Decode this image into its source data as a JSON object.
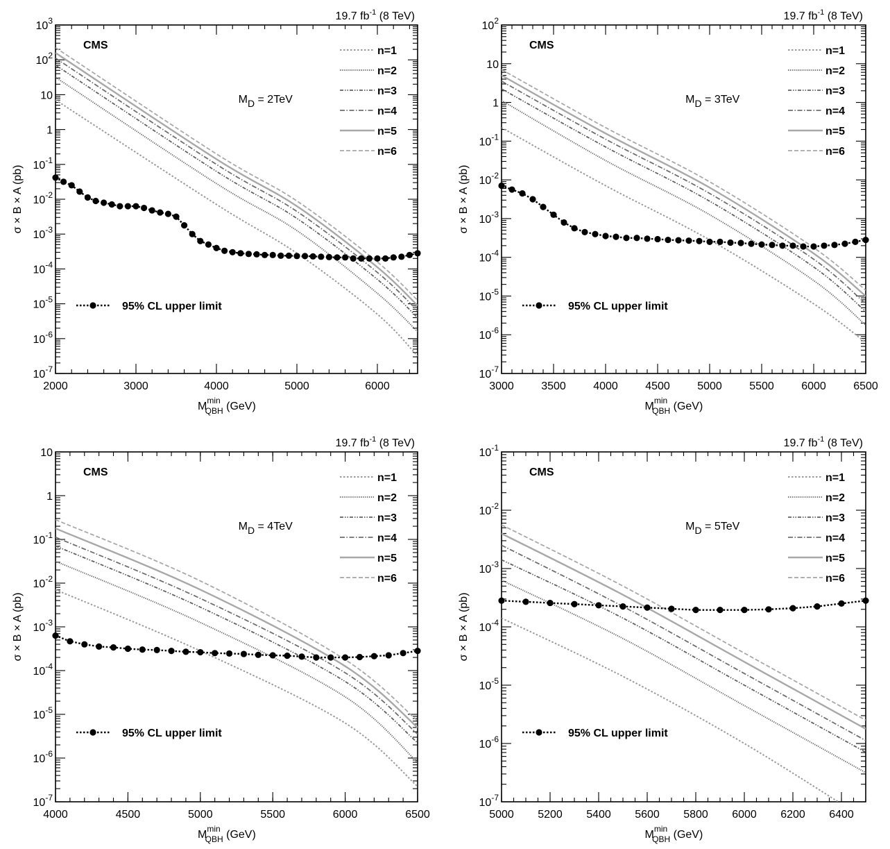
{
  "chart_data": [
    {
      "type": "line",
      "lumi_label": "19.7 fb",
      "lumi_sup": "-1",
      "energy_label": " (8 TeV)",
      "experiment": "CMS",
      "md_label_pre": "M",
      "md_label_sub": "D",
      "md_label_post": " = 2TeV",
      "xlabel_main": "M",
      "xlabel_sub": "QBH",
      "xlabel_sup": "min",
      "xlabel_unit": " (GeV)",
      "ylabel": "σ × B × A (pb)",
      "xlim": [
        2000,
        6500
      ],
      "ylim_exp": [
        -7,
        3
      ],
      "y_log": true,
      "x_ticks": [
        "2000",
        "3000",
        "4000",
        "5000",
        "6000"
      ],
      "x_tick_values": [
        2000,
        3000,
        4000,
        5000,
        6000
      ],
      "x_minor_step": 200,
      "y_tick_labels": [
        "10-7",
        "10-6",
        "10-5",
        "10-4",
        "10-3",
        "10-2",
        "10-1",
        "1",
        "10",
        "102",
        "103"
      ],
      "legend": [
        "n=1",
        "n=2",
        "n=3",
        "n=4",
        "n=5",
        "n=6"
      ],
      "limit_label": "95% CL upper limit",
      "series": [
        {
          "name": "n=1",
          "x": [
            2000,
            4000,
            5000,
            6000,
            6500
          ],
          "y_log10": [
            0.85,
            -2.15,
            -3.55,
            -5.3,
            -6.5
          ]
        },
        {
          "name": "n=2",
          "x": [
            2000,
            4000,
            5000,
            6000,
            6500
          ],
          "y_log10": [
            1.5,
            -1.55,
            -2.9,
            -4.7,
            -5.8
          ]
        },
        {
          "name": "n=3",
          "x": [
            2000,
            4000,
            5000,
            6000,
            6500
          ],
          "y_log10": [
            1.85,
            -1.2,
            -2.55,
            -4.3,
            -5.4
          ]
        },
        {
          "name": "n=4",
          "x": [
            2000,
            4000,
            5000,
            6000,
            6500
          ],
          "y_log10": [
            2.05,
            -1.0,
            -2.35,
            -4.1,
            -5.2
          ]
        },
        {
          "name": "n=5",
          "x": [
            2000,
            4000,
            5000,
            6000,
            6500
          ],
          "y_log10": [
            2.2,
            -0.85,
            -2.2,
            -3.95,
            -5.05
          ]
        },
        {
          "name": "n=6",
          "x": [
            2000,
            4000,
            5000,
            6000,
            6500
          ],
          "y_log10": [
            2.35,
            -0.7,
            -2.05,
            -3.8,
            -4.9
          ]
        }
      ],
      "limit": {
        "x": [
          2000,
          2100,
          2200,
          2300,
          2400,
          2500,
          2600,
          2700,
          2800,
          2900,
          3000,
          3100,
          3200,
          3300,
          3400,
          3500,
          3600,
          3700,
          3800,
          3900,
          4000,
          4100,
          4200,
          4300,
          4400,
          4500,
          4600,
          4700,
          4800,
          4900,
          5000,
          5100,
          5200,
          5300,
          5400,
          5500,
          5600,
          5700,
          5800,
          5900,
          6000,
          6100,
          6200,
          6300,
          6400,
          6500
        ],
        "y_log10": [
          -1.38,
          -1.5,
          -1.6,
          -1.78,
          -1.95,
          -2.05,
          -2.1,
          -2.15,
          -2.2,
          -2.2,
          -2.2,
          -2.25,
          -2.32,
          -2.38,
          -2.42,
          -2.5,
          -2.75,
          -3.0,
          -3.2,
          -3.3,
          -3.4,
          -3.48,
          -3.52,
          -3.55,
          -3.57,
          -3.58,
          -3.6,
          -3.6,
          -3.62,
          -3.62,
          -3.63,
          -3.63,
          -3.64,
          -3.65,
          -3.66,
          -3.67,
          -3.67,
          -3.7,
          -3.7,
          -3.7,
          -3.7,
          -3.7,
          -3.67,
          -3.65,
          -3.6,
          -3.55
        ]
      }
    },
    {
      "type": "line",
      "lumi_label": "19.7 fb",
      "lumi_sup": "-1",
      "energy_label": " (8 TeV)",
      "experiment": "CMS",
      "md_label_pre": "M",
      "md_label_sub": "D",
      "md_label_post": " = 3TeV",
      "xlabel_main": "M",
      "xlabel_sub": "QBH",
      "xlabel_sup": "min",
      "xlabel_unit": " (GeV)",
      "ylabel": "σ × B × A (pb)",
      "xlim": [
        3000,
        6500
      ],
      "ylim_exp": [
        -7,
        2
      ],
      "y_log": true,
      "x_ticks": [
        "3000",
        "3500",
        "4000",
        "4500",
        "5000",
        "5500",
        "6000",
        "6500"
      ],
      "x_tick_values": [
        3000,
        3500,
        4000,
        4500,
        5000,
        5500,
        6000,
        6500
      ],
      "x_minor_step": 100,
      "y_tick_labels": [
        "10-7",
        "10-6",
        "10-5",
        "10-4",
        "10-3",
        "10-2",
        "10-1",
        "1",
        "10",
        "102"
      ],
      "legend": [
        "n=1",
        "n=2",
        "n=3",
        "n=4",
        "n=5",
        "n=6"
      ],
      "limit_label": "95% CL upper limit",
      "series": [
        {
          "name": "n=1",
          "x": [
            3000,
            4000,
            5000,
            6000,
            6500
          ],
          "y_log10": [
            -0.65,
            -2.15,
            -3.55,
            -5.2,
            -6.2
          ]
        },
        {
          "name": "n=2",
          "x": [
            3000,
            4000,
            5000,
            6000,
            6500
          ],
          "y_log10": [
            0.05,
            -1.5,
            -2.9,
            -4.6,
            -5.75
          ]
        },
        {
          "name": "n=3",
          "x": [
            3000,
            4000,
            5000,
            6000,
            6500
          ],
          "y_log10": [
            0.35,
            -1.15,
            -2.55,
            -4.25,
            -5.4
          ]
        },
        {
          "name": "n=4",
          "x": [
            3000,
            4000,
            5000,
            6000,
            6500
          ],
          "y_log10": [
            0.55,
            -0.95,
            -2.35,
            -4.05,
            -5.2
          ]
        },
        {
          "name": "n=5",
          "x": [
            3000,
            4000,
            5000,
            6000,
            6500
          ],
          "y_log10": [
            0.7,
            -0.8,
            -2.2,
            -3.9,
            -5.0
          ]
        },
        {
          "name": "n=6",
          "x": [
            3000,
            4000,
            5000,
            6000,
            6500
          ],
          "y_log10": [
            0.85,
            -0.65,
            -2.05,
            -3.75,
            -4.85
          ]
        }
      ],
      "limit": {
        "x": [
          3000,
          3100,
          3200,
          3300,
          3400,
          3500,
          3600,
          3700,
          3800,
          3900,
          4000,
          4100,
          4200,
          4300,
          4400,
          4500,
          4600,
          4700,
          4800,
          4900,
          5000,
          5100,
          5200,
          5300,
          5400,
          5500,
          5600,
          5700,
          5800,
          5900,
          6000,
          6100,
          6200,
          6300,
          6400,
          6500
        ],
        "y_log10": [
          -2.15,
          -2.25,
          -2.35,
          -2.5,
          -2.7,
          -2.9,
          -3.1,
          -3.25,
          -3.35,
          -3.4,
          -3.45,
          -3.47,
          -3.5,
          -3.5,
          -3.52,
          -3.53,
          -3.55,
          -3.56,
          -3.57,
          -3.58,
          -3.6,
          -3.6,
          -3.62,
          -3.63,
          -3.65,
          -3.67,
          -3.68,
          -3.7,
          -3.7,
          -3.72,
          -3.72,
          -3.7,
          -3.68,
          -3.65,
          -3.6,
          -3.55
        ]
      }
    },
    {
      "type": "line",
      "lumi_label": "19.7 fb",
      "lumi_sup": "-1",
      "energy_label": " (8 TeV)",
      "experiment": "CMS",
      "md_label_pre": "M",
      "md_label_sub": "D",
      "md_label_post": " = 4TeV",
      "xlabel_main": "M",
      "xlabel_sub": "QBH",
      "xlabel_sup": "min",
      "xlabel_unit": " (GeV)",
      "ylabel": "σ × B × A (pb)",
      "xlim": [
        4000,
        6500
      ],
      "ylim_exp": [
        -7,
        1
      ],
      "y_log": true,
      "x_ticks": [
        "4000",
        "4500",
        "5000",
        "5500",
        "6000",
        "6500"
      ],
      "x_tick_values": [
        4000,
        4500,
        5000,
        5500,
        6000,
        6500
      ],
      "x_minor_step": 100,
      "y_tick_labels": [
        "10-7",
        "10-6",
        "10-5",
        "10-4",
        "10-3",
        "10-2",
        "10-1",
        "1",
        "10"
      ],
      "legend": [
        "n=1",
        "n=2",
        "n=3",
        "n=4",
        "n=5",
        "n=6"
      ],
      "limit_label": "95% CL upper limit",
      "series": [
        {
          "name": "n=1",
          "x": [
            4000,
            5000,
            6000,
            6500
          ],
          "y_log10": [
            -2.15,
            -3.55,
            -5.2,
            -6.65
          ]
        },
        {
          "name": "n=2",
          "x": [
            4000,
            5000,
            6000,
            6500
          ],
          "y_log10": [
            -1.5,
            -2.9,
            -4.6,
            -6.1
          ]
        },
        {
          "name": "n=3",
          "x": [
            4000,
            5000,
            6000,
            6500
          ],
          "y_log10": [
            -1.15,
            -2.55,
            -4.25,
            -5.65
          ]
        },
        {
          "name": "n=4",
          "x": [
            4000,
            5000,
            6000,
            6500
          ],
          "y_log10": [
            -0.95,
            -2.35,
            -4.05,
            -5.45
          ]
        },
        {
          "name": "n=5",
          "x": [
            4000,
            5000,
            6000,
            6500
          ],
          "y_log10": [
            -0.75,
            -2.15,
            -3.9,
            -5.3
          ]
        },
        {
          "name": "n=6",
          "x": [
            4000,
            5000,
            6000,
            6500
          ],
          "y_log10": [
            -0.55,
            -1.95,
            -3.75,
            -5.15
          ]
        }
      ],
      "limit": {
        "x": [
          4000,
          4100,
          4200,
          4300,
          4400,
          4500,
          4600,
          4700,
          4800,
          4900,
          5000,
          5100,
          5200,
          5300,
          5400,
          5500,
          5600,
          5700,
          5800,
          5900,
          6000,
          6100,
          6200,
          6300,
          6400,
          6500
        ],
        "y_log10": [
          -3.2,
          -3.33,
          -3.4,
          -3.45,
          -3.47,
          -3.5,
          -3.52,
          -3.53,
          -3.55,
          -3.57,
          -3.58,
          -3.6,
          -3.61,
          -3.62,
          -3.64,
          -3.65,
          -3.66,
          -3.68,
          -3.7,
          -3.7,
          -3.7,
          -3.69,
          -3.67,
          -3.65,
          -3.6,
          -3.55
        ]
      }
    },
    {
      "type": "line",
      "lumi_label": "19.7 fb",
      "lumi_sup": "-1",
      "energy_label": " (8 TeV)",
      "experiment": "CMS",
      "md_label_pre": "M",
      "md_label_sub": "D",
      "md_label_post": " = 5TeV",
      "xlabel_main": "M",
      "xlabel_sub": "QBH",
      "xlabel_sup": "min",
      "xlabel_unit": " (GeV)",
      "ylabel": "σ × B × A (pb)",
      "xlim": [
        5000,
        6500
      ],
      "ylim_exp": [
        -7,
        -1
      ],
      "y_log": true,
      "x_ticks": [
        "5000",
        "5200",
        "5400",
        "5600",
        "5800",
        "6000",
        "6200",
        "6400"
      ],
      "x_tick_values": [
        5000,
        5200,
        5400,
        5600,
        5800,
        6000,
        6200,
        6400
      ],
      "x_minor_step": 50,
      "y_tick_labels": [
        "10-7",
        "10-6",
        "10-5",
        "10-4",
        "10-3",
        "10-2",
        "10-1"
      ],
      "legend": [
        "n=1",
        "n=2",
        "n=3",
        "n=4",
        "n=5",
        "n=6"
      ],
      "limit_label": "95% CL upper limit",
      "series": [
        {
          "name": "n=1",
          "x": [
            5000,
            5500,
            6000,
            6500
          ],
          "y_log10": [
            -3.85,
            -4.85,
            -6.0,
            -7.3
          ]
        },
        {
          "name": "n=2",
          "x": [
            5000,
            5500,
            6000,
            6500
          ],
          "y_log10": [
            -3.2,
            -4.2,
            -5.35,
            -6.5
          ]
        },
        {
          "name": "n=3",
          "x": [
            5000,
            5500,
            6000,
            6500
          ],
          "y_log10": [
            -2.85,
            -3.85,
            -5.0,
            -6.15
          ]
        },
        {
          "name": "n=4",
          "x": [
            5000,
            5500,
            6000,
            6500
          ],
          "y_log10": [
            -2.6,
            -3.65,
            -4.8,
            -5.95
          ]
        },
        {
          "name": "n=5",
          "x": [
            5000,
            5500,
            6000,
            6500
          ],
          "y_log10": [
            -2.4,
            -3.45,
            -4.6,
            -5.75
          ]
        },
        {
          "name": "n=6",
          "x": [
            5000,
            5500,
            6000,
            6500
          ],
          "y_log10": [
            -2.25,
            -3.3,
            -4.45,
            -5.6
          ]
        }
      ],
      "limit": {
        "x": [
          5000,
          5100,
          5200,
          5300,
          5400,
          5500,
          5600,
          5700,
          5800,
          5900,
          6000,
          6100,
          6200,
          6300,
          6400,
          6500
        ],
        "y_log10": [
          -3.55,
          -3.57,
          -3.59,
          -3.61,
          -3.63,
          -3.65,
          -3.67,
          -3.69,
          -3.71,
          -3.71,
          -3.71,
          -3.7,
          -3.68,
          -3.65,
          -3.6,
          -3.55
        ]
      }
    }
  ],
  "styles": {
    "n1": "#9a9a9a",
    "n2": "#666666",
    "n3": "#606060",
    "n4": "#6e6e6e",
    "n5": "#a8a8a8",
    "n6": "#a8a8a8",
    "limit": "#000000"
  }
}
